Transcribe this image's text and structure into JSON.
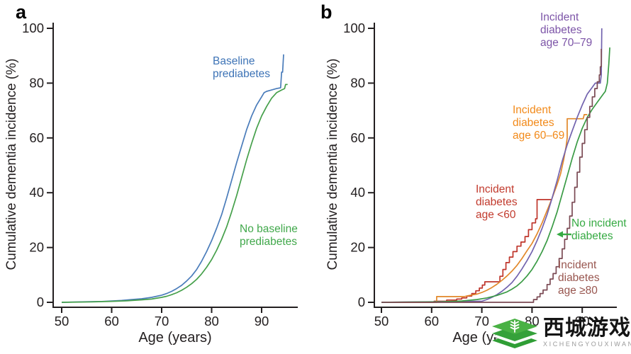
{
  "chart_data": [
    {
      "type": "line",
      "panel_label": "a",
      "title": "",
      "xlabel": "Age (years)",
      "ylabel": "Cumulative dementia incidence (%)",
      "xlim": [
        50,
        96
      ],
      "ylim": [
        0,
        100
      ],
      "x_ticks": [
        50,
        60,
        70,
        80,
        90
      ],
      "y_ticks": [
        0,
        20,
        40,
        60,
        80,
        100
      ],
      "grid": false,
      "legend_position": "annotated on plot",
      "series": [
        {
          "name": "Baseline prediabetes",
          "label": "Baseline\nprediabetes",
          "color": "#4a7cba",
          "label_color": "#3d73b6",
          "step": false,
          "points": [
            [
              50,
              0
            ],
            [
              55,
              0.2
            ],
            [
              58,
              0.3
            ],
            [
              60,
              0.5
            ],
            [
              62,
              0.7
            ],
            [
              64,
              1
            ],
            [
              66,
              1.3
            ],
            [
              68,
              1.8
            ],
            [
              69,
              2.2
            ],
            [
              70,
              2.6
            ],
            [
              71,
              3.2
            ],
            [
              72,
              4
            ],
            [
              73,
              5
            ],
            [
              74,
              6.2
            ],
            [
              75,
              7.8
            ],
            [
              76,
              9.6
            ],
            [
              77,
              12
            ],
            [
              78,
              15
            ],
            [
              79,
              18.5
            ],
            [
              80,
              22.5
            ],
            [
              81,
              27
            ],
            [
              82,
              32
            ],
            [
              83,
              38
            ],
            [
              84,
              44.5
            ],
            [
              85,
              51
            ],
            [
              86,
              57
            ],
            [
              87,
              63
            ],
            [
              88,
              68
            ],
            [
              89,
              72
            ],
            [
              90,
              75
            ],
            [
              90.5,
              76.5
            ],
            [
              91,
              77
            ],
            [
              92,
              77.5
            ],
            [
              93,
              78
            ],
            [
              93.8,
              78.3
            ],
            [
              94,
              84
            ],
            [
              94.2,
              84
            ],
            [
              94.4,
              90.5
            ]
          ]
        },
        {
          "name": "No baseline prediabetes",
          "label": "No baseline\nprediabetes",
          "color": "#46a04b",
          "label_color": "#41a84b",
          "step": false,
          "points": [
            [
              50,
              0
            ],
            [
              56,
              0.15
            ],
            [
              60,
              0.35
            ],
            [
              63,
              0.55
            ],
            [
              66,
              0.9
            ],
            [
              68,
              1.2
            ],
            [
              70,
              1.8
            ],
            [
              71,
              2.2
            ],
            [
              72,
              2.8
            ],
            [
              73,
              3.5
            ],
            [
              74,
              4.4
            ],
            [
              75,
              5.5
            ],
            [
              76,
              6.8
            ],
            [
              77,
              8.4
            ],
            [
              78,
              10.4
            ],
            [
              79,
              12.8
            ],
            [
              80,
              15.6
            ],
            [
              81,
              19
            ],
            [
              82,
              23
            ],
            [
              83,
              27.5
            ],
            [
              84,
              33
            ],
            [
              85,
              39
            ],
            [
              86,
              45.5
            ],
            [
              87,
              52
            ],
            [
              88,
              58
            ],
            [
              89,
              63.5
            ],
            [
              90,
              68
            ],
            [
              91,
              71.5
            ],
            [
              92,
              74.5
            ],
            [
              93,
              76.5
            ],
            [
              94,
              77.5
            ],
            [
              94.6,
              78
            ],
            [
              94.8,
              79.5
            ],
            [
              95.2,
              79.5
            ]
          ]
        }
      ]
    },
    {
      "type": "line",
      "panel_label": "b",
      "title": "",
      "xlabel": "Age (years)",
      "ylabel": "Cumulative dementia incidence (%)",
      "xlim": [
        50,
        97
      ],
      "ylim": [
        0,
        100
      ],
      "x_ticks": [
        50,
        60,
        70,
        80,
        90
      ],
      "y_ticks": [
        0,
        20,
        40,
        60,
        80,
        100
      ],
      "grid": false,
      "legend_position": "annotated on plot",
      "arrow": {
        "points_to": "No incident diabetes",
        "color": "#36aa43"
      },
      "series": [
        {
          "name": "Incident diabetes age <60",
          "label": "Incident\ndiabetes\nage <60",
          "color": "#bf362c",
          "label_color": "#c23b2e",
          "step": true,
          "points": [
            [
              50,
              0
            ],
            [
              60.5,
              0.4
            ],
            [
              63,
              0.8
            ],
            [
              65,
              1.2
            ],
            [
              66,
              1.6
            ],
            [
              67,
              2.3
            ],
            [
              68,
              3.2
            ],
            [
              68.8,
              4.2
            ],
            [
              69.5,
              5.2
            ],
            [
              70.1,
              6.3
            ],
            [
              70.6,
              7.5
            ],
            [
              73,
              7.5
            ],
            [
              73.6,
              9.5
            ],
            [
              74.2,
              12
            ],
            [
              74.8,
              14.5
            ],
            [
              75.5,
              16.5
            ],
            [
              76.2,
              18.5
            ],
            [
              77,
              20.5
            ],
            [
              77.8,
              22
            ],
            [
              78.6,
              24
            ],
            [
              79.3,
              26.5
            ],
            [
              80,
              29
            ],
            [
              80.7,
              30.5
            ],
            [
              81,
              37.5
            ],
            [
              84,
              37.5
            ]
          ]
        },
        {
          "name": "Incident diabetes age 60-69",
          "label": "Incident\ndiabetes\nage 60–69",
          "color": "#e2882a",
          "label_color": "#f28a1a",
          "step": false,
          "points": [
            [
              50,
              0
            ],
            [
              61,
              0
            ],
            [
              61,
              2.1
            ],
            [
              66.5,
              2.1
            ],
            [
              67.5,
              2.5
            ],
            [
              69,
              3
            ],
            [
              70,
              3.6
            ],
            [
              71,
              4.4
            ],
            [
              72,
              5.4
            ],
            [
              73,
              6.6
            ],
            [
              74,
              8
            ],
            [
              75,
              9.6
            ],
            [
              76,
              11.4
            ],
            [
              77,
              13.5
            ],
            [
              78,
              16
            ],
            [
              79,
              18.8
            ],
            [
              80,
              21.5
            ],
            [
              81,
              25
            ],
            [
              82,
              29
            ],
            [
              83,
              33.5
            ],
            [
              84,
              38
            ],
            [
              85,
              43
            ],
            [
              85.7,
              47
            ],
            [
              86.3,
              52
            ],
            [
              86.8,
              57
            ],
            [
              87,
              60
            ],
            [
              87,
              67
            ],
            [
              90.2,
              67
            ],
            [
              90.4,
              68.5
            ],
            [
              91,
              68.5
            ]
          ]
        },
        {
          "name": "Incident diabetes age 70-79",
          "label": "Incident\ndiabetes\nage 70–79",
          "color": "#7263ae",
          "label_color": "#7d55a8",
          "step": false,
          "points": [
            [
              50,
              0
            ],
            [
              70,
              0.4
            ],
            [
              71,
              1
            ],
            [
              72,
              1.8
            ],
            [
              73,
              2.8
            ],
            [
              74,
              4
            ],
            [
              75,
              5.5
            ],
            [
              76,
              7.2
            ],
            [
              77,
              9.5
            ],
            [
              78,
              12.2
            ],
            [
              79,
              15.2
            ],
            [
              80,
              18.5
            ],
            [
              81,
              22.5
            ],
            [
              82,
              27
            ],
            [
              83,
              32
            ],
            [
              84,
              38
            ],
            [
              85,
              44.5
            ],
            [
              86,
              51.5
            ],
            [
              87,
              57.5
            ],
            [
              88,
              62.5
            ],
            [
              89,
              67.5
            ],
            [
              90,
              72
            ],
            [
              91,
              76
            ],
            [
              92,
              78.5
            ],
            [
              92.6,
              80
            ],
            [
              93.6,
              80
            ],
            [
              93.8,
              83
            ],
            [
              93.9,
              100
            ]
          ]
        },
        {
          "name": "No incident diabetes",
          "label": "No incident\ndiabetes",
          "color": "#3a9b45",
          "label_color": "#36aa43",
          "step": false,
          "points": [
            [
              50,
              0
            ],
            [
              62,
              0.2
            ],
            [
              66,
              0.5
            ],
            [
              69,
              1
            ],
            [
              71,
              1.6
            ],
            [
              73,
              2.5
            ],
            [
              75,
              3.8
            ],
            [
              76,
              4.8
            ],
            [
              77,
              6
            ],
            [
              78,
              7.6
            ],
            [
              79,
              9.6
            ],
            [
              80,
              12
            ],
            [
              81,
              15
            ],
            [
              82,
              18.5
            ],
            [
              83,
              22.5
            ],
            [
              84,
              27.5
            ],
            [
              85,
              33
            ],
            [
              86,
              39.5
            ],
            [
              87,
              46
            ],
            [
              88,
              52.5
            ],
            [
              89,
              58.5
            ],
            [
              90,
              63.5
            ],
            [
              91,
              67.5
            ],
            [
              92,
              70.5
            ],
            [
              93,
              73
            ],
            [
              94,
              75.5
            ],
            [
              94.6,
              77
            ],
            [
              95,
              80
            ],
            [
              95.3,
              87
            ],
            [
              95.5,
              93
            ]
          ]
        },
        {
          "name": "Incident diabetes age >=80",
          "label": "Incident\ndiabetes\nage ≥80",
          "color": "#7b4a54",
          "label_color": "#98564f",
          "step": true,
          "points": [
            [
              50,
              0
            ],
            [
              80,
              0
            ],
            [
              80.3,
              1
            ],
            [
              81,
              2
            ],
            [
              81.6,
              3.2
            ],
            [
              82.2,
              4.5
            ],
            [
              83,
              6.5
            ],
            [
              83.6,
              8.5
            ],
            [
              84.2,
              10.5
            ],
            [
              84.8,
              13
            ],
            [
              85.4,
              16
            ],
            [
              86,
              19.5
            ],
            [
              86.5,
              23
            ],
            [
              87,
              27
            ],
            [
              87.5,
              31.5
            ],
            [
              88,
              36.5
            ],
            [
              88.5,
              42
            ],
            [
              89,
              47.5
            ],
            [
              89.5,
              53
            ],
            [
              90,
              58
            ],
            [
              90.5,
              63
            ],
            [
              91,
              67.5
            ],
            [
              91.5,
              71.5
            ],
            [
              92,
              75
            ],
            [
              92.5,
              78
            ],
            [
              93,
              80.5
            ],
            [
              93.4,
              83
            ],
            [
              93.6,
              86
            ],
            [
              93.8,
              92.5
            ]
          ]
        }
      ]
    }
  ],
  "watermark": {
    "title": "西城游戏网",
    "subtitle": "XICHENGYOUXIWANG",
    "logo_green_light": "#49b144",
    "logo_green_dark": "#2f9e35"
  }
}
